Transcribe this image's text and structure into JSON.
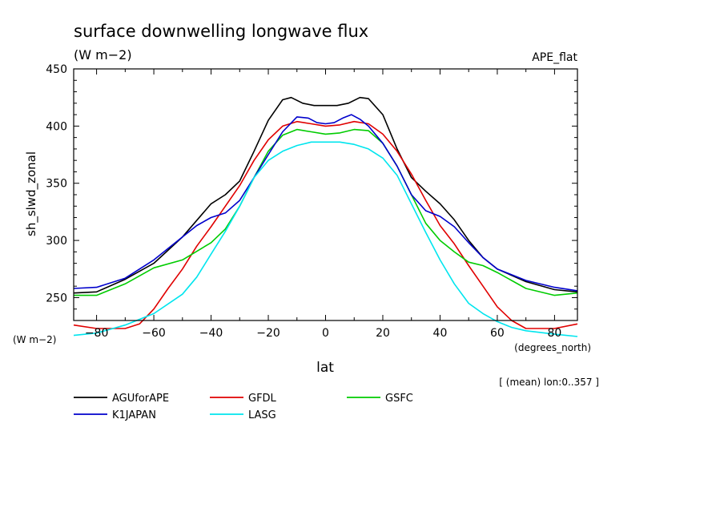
{
  "chart_data": {
    "type": "line",
    "title": "surface downwelling longwave flux",
    "units_label": "(W m−2)",
    "dataset_label": "APE_flat",
    "ylabel": "sh_slwd_zonal",
    "xlabel": "lat",
    "x_units": "(degrees_north)",
    "y_units": "(W m−2)",
    "footnote": "[ (mean) lon:0..357 ]",
    "xlim": [
      -88,
      88
    ],
    "ylim": [
      230,
      450
    ],
    "x_ticks": [
      -80,
      -60,
      -40,
      -20,
      0,
      20,
      40,
      60,
      80
    ],
    "x_tick_labels": [
      "−80",
      "−60",
      "−40",
      "−20",
      "0",
      "20",
      "40",
      "60",
      "80"
    ],
    "y_ticks": [
      250,
      300,
      350,
      400,
      450
    ],
    "y_tick_labels": [
      "250",
      "300",
      "350",
      "400",
      "450"
    ],
    "legend_position": "bottom",
    "series": [
      {
        "name": "AGUforAPE",
        "color": "#000000",
        "points": [
          [
            -88,
            254
          ],
          [
            -80,
            255
          ],
          [
            -70,
            266
          ],
          [
            -60,
            280
          ],
          [
            -50,
            303
          ],
          [
            -40,
            332
          ],
          [
            -35,
            340
          ],
          [
            -30,
            352
          ],
          [
            -25,
            378
          ],
          [
            -20,
            405
          ],
          [
            -15,
            423
          ],
          [
            -12,
            425
          ],
          [
            -8,
            420
          ],
          [
            -4,
            418
          ],
          [
            0,
            418
          ],
          [
            4,
            418
          ],
          [
            8,
            420
          ],
          [
            12,
            425
          ],
          [
            15,
            424
          ],
          [
            20,
            410
          ],
          [
            25,
            380
          ],
          [
            30,
            355
          ],
          [
            35,
            343
          ],
          [
            40,
            332
          ],
          [
            45,
            318
          ],
          [
            50,
            300
          ],
          [
            55,
            285
          ],
          [
            60,
            275
          ],
          [
            70,
            264
          ],
          [
            80,
            257
          ],
          [
            88,
            255
          ]
        ]
      },
      {
        "name": "GFDL",
        "color": "#e00000",
        "points": [
          [
            -88,
            226
          ],
          [
            -80,
            223
          ],
          [
            -70,
            223
          ],
          [
            -65,
            227
          ],
          [
            -60,
            240
          ],
          [
            -55,
            258
          ],
          [
            -50,
            275
          ],
          [
            -45,
            295
          ],
          [
            -40,
            312
          ],
          [
            -35,
            330
          ],
          [
            -30,
            348
          ],
          [
            -25,
            370
          ],
          [
            -20,
            388
          ],
          [
            -15,
            400
          ],
          [
            -10,
            404
          ],
          [
            -5,
            402
          ],
          [
            0,
            400
          ],
          [
            5,
            401
          ],
          [
            10,
            404
          ],
          [
            15,
            402
          ],
          [
            20,
            393
          ],
          [
            25,
            378
          ],
          [
            30,
            358
          ],
          [
            35,
            335
          ],
          [
            40,
            313
          ],
          [
            45,
            297
          ],
          [
            50,
            278
          ],
          [
            55,
            260
          ],
          [
            60,
            242
          ],
          [
            65,
            230
          ],
          [
            70,
            223
          ],
          [
            80,
            223
          ],
          [
            88,
            227
          ]
        ]
      },
      {
        "name": "GSFC",
        "color": "#00cc00",
        "points": [
          [
            -88,
            252
          ],
          [
            -80,
            252
          ],
          [
            -70,
            262
          ],
          [
            -60,
            276
          ],
          [
            -50,
            283
          ],
          [
            -40,
            298
          ],
          [
            -35,
            310
          ],
          [
            -30,
            330
          ],
          [
            -25,
            355
          ],
          [
            -20,
            378
          ],
          [
            -15,
            392
          ],
          [
            -10,
            397
          ],
          [
            -5,
            395
          ],
          [
            0,
            393
          ],
          [
            5,
            394
          ],
          [
            10,
            397
          ],
          [
            15,
            396
          ],
          [
            20,
            385
          ],
          [
            25,
            365
          ],
          [
            30,
            340
          ],
          [
            35,
            315
          ],
          [
            40,
            300
          ],
          [
            45,
            290
          ],
          [
            50,
            281
          ],
          [
            55,
            278
          ],
          [
            60,
            272
          ],
          [
            70,
            258
          ],
          [
            80,
            252
          ],
          [
            88,
            254
          ]
        ]
      },
      {
        "name": "K1JAPAN",
        "color": "#0000cc",
        "points": [
          [
            -88,
            258
          ],
          [
            -80,
            259
          ],
          [
            -70,
            267
          ],
          [
            -60,
            283
          ],
          [
            -50,
            303
          ],
          [
            -45,
            313
          ],
          [
            -40,
            320
          ],
          [
            -35,
            324
          ],
          [
            -30,
            335
          ],
          [
            -25,
            355
          ],
          [
            -20,
            375
          ],
          [
            -15,
            395
          ],
          [
            -10,
            408
          ],
          [
            -6,
            407
          ],
          [
            -3,
            403
          ],
          [
            0,
            402
          ],
          [
            3,
            403
          ],
          [
            6,
            407
          ],
          [
            9,
            410
          ],
          [
            12,
            406
          ],
          [
            15,
            400
          ],
          [
            20,
            385
          ],
          [
            25,
            365
          ],
          [
            30,
            340
          ],
          [
            35,
            326
          ],
          [
            40,
            321
          ],
          [
            45,
            312
          ],
          [
            50,
            298
          ],
          [
            55,
            285
          ],
          [
            60,
            275
          ],
          [
            70,
            265
          ],
          [
            80,
            259
          ],
          [
            88,
            256
          ]
        ]
      },
      {
        "name": "LASG",
        "color": "#00e5ee",
        "points": [
          [
            -88,
            217
          ],
          [
            -80,
            219
          ],
          [
            -70,
            226
          ],
          [
            -60,
            236
          ],
          [
            -50,
            253
          ],
          [
            -45,
            268
          ],
          [
            -40,
            288
          ],
          [
            -35,
            308
          ],
          [
            -30,
            330
          ],
          [
            -25,
            355
          ],
          [
            -20,
            370
          ],
          [
            -15,
            378
          ],
          [
            -10,
            383
          ],
          [
            -5,
            386
          ],
          [
            0,
            386
          ],
          [
            5,
            386
          ],
          [
            10,
            384
          ],
          [
            15,
            380
          ],
          [
            20,
            372
          ],
          [
            25,
            357
          ],
          [
            30,
            332
          ],
          [
            35,
            307
          ],
          [
            40,
            283
          ],
          [
            45,
            262
          ],
          [
            50,
            245
          ],
          [
            55,
            236
          ],
          [
            60,
            229
          ],
          [
            65,
            224
          ],
          [
            70,
            221
          ],
          [
            80,
            218
          ],
          [
            88,
            216
          ]
        ]
      }
    ]
  }
}
